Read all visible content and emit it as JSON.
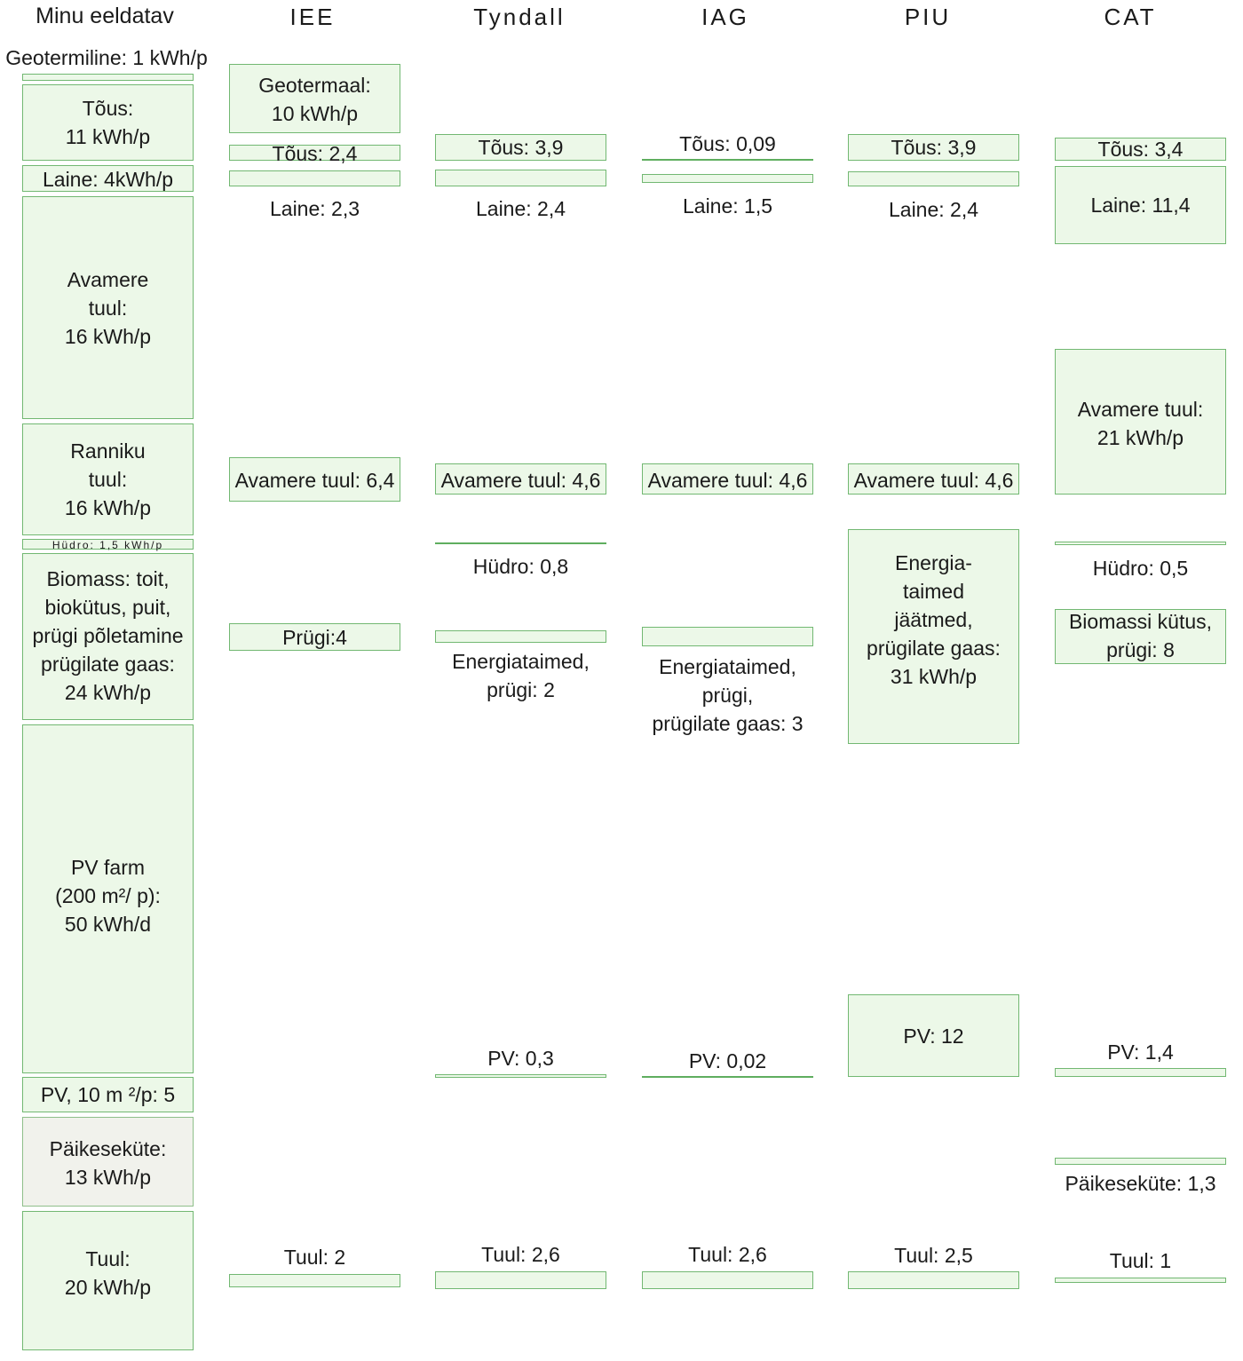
{
  "colors": {
    "box_fill": "#ecf8e8",
    "box_border": "#72b872",
    "solar_heat_fill": "#f1f2ec"
  },
  "columns": [
    {
      "header": "Minu eeldatav",
      "entries": [
        "Geotermiline: 1 kWh/p",
        "Tõus:\n11 kWh/p",
        "Laine: 4kWh/p",
        "Avamere\ntuul:\n16 kWh/p",
        "Ranniku\ntuul:\n16 kWh/p",
        "Hüdro: 1,5 kWh/p",
        "Biomass: toit,\nbiokütus, puit,\nprügi põletamine\nprügilate gaas:\n24 kWh/p",
        "PV farm\n(200 m²/ p):\n50 kWh/d",
        "PV, 10 m ²/p:  5",
        "Päikeseküte:\n13 kWh/p",
        "Tuul:\n20 kWh/p"
      ]
    },
    {
      "header": "IEE",
      "entries": [
        "Geotermaal:\n10 kWh/p",
        "Tõus:  2,4",
        "Laine:  2,3",
        "Avamere tuul: 6,4",
        "Prügi:4",
        "Tuul:     2"
      ]
    },
    {
      "header": "Tyndall",
      "entries": [
        "Tõus:  3,9",
        "Laine:  2,4",
        "Avamere tuul: 4,6",
        "Hüdro:  0,8",
        "Energiataimed,\nprügi:  2",
        "PV:  0,3",
        "Tuul:    2,6"
      ]
    },
    {
      "header": "IAG",
      "entries": [
        "Tõus:  0,09",
        "Laine:  1,5",
        "Avamere tuul: 4,6",
        "Energiataimed,\nprügi,\nprügilate gaas: 3",
        "PV:  0,02",
        "Tuul:    2,6"
      ]
    },
    {
      "header": "PIU",
      "entries": [
        "Tõus:  3,9",
        "Laine:  2,4",
        "Avamere tuul: 4,6",
        "Energia-\ntaimed\njäätmed,\nprügilate gaas:\n31 kWh/p",
        "PV:  12",
        "Tuul:    2,5"
      ]
    },
    {
      "header": "CAT",
      "entries": [
        "Tõus:  3,4",
        "Laine:  11,4",
        "Avamere tuul:\n21 kWh/p",
        "Hüdro:  0,5",
        "Biomassi kütus,\nprügi: 8",
        "PV:  1,4",
        "Päikeseküte: 1,3",
        "Tuul:    1"
      ]
    }
  ]
}
